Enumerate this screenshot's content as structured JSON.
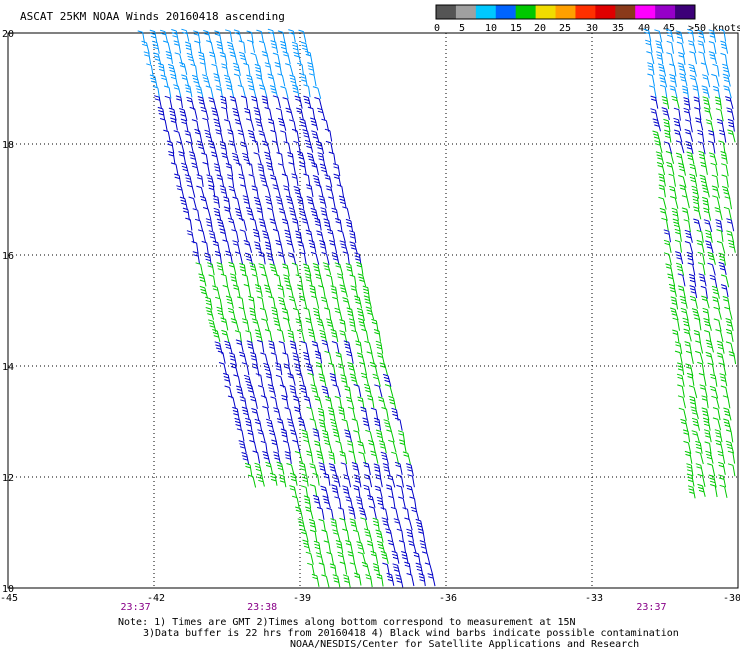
{
  "title": "ASCAT 25KM NOAA Winds 20160418 ascending",
  "map": {
    "lon_range": [
      -45,
      -30
    ],
    "lat_range": [
      10,
      20
    ],
    "lon_ticks": [
      -45,
      -42,
      -39,
      -36,
      -33,
      -30
    ],
    "lon_tick_labels": [
      "-45",
      "-42",
      "-39",
      "-36",
      "-33",
      "-30"
    ],
    "lat_ticks": [
      20,
      18,
      16,
      14,
      12,
      10
    ],
    "lat_tick_labels": [
      "20",
      "18",
      "16",
      "14",
      "12",
      "10"
    ],
    "grid_lon": [
      -42,
      -39,
      -36,
      -33
    ],
    "grid_lat": [
      18,
      16,
      14,
      12
    ],
    "grid": "dotted"
  },
  "legend": {
    "tick_labels": [
      "0",
      "5",
      "10",
      "15",
      "20",
      "25",
      "30",
      "35",
      "40",
      "45",
      ">50 knots"
    ],
    "colors": [
      "#555555",
      "#a0a0a0",
      "#00c8ff",
      "#0064ff",
      "#00c800",
      "#f0dc00",
      "#ffa000",
      "#ff3000",
      "#e00000",
      "#8a3a1a",
      "#ff00ff",
      "#9600c8",
      "#3c0078"
    ]
  },
  "times": [
    {
      "label": "23:37",
      "lon": -42.4
    },
    {
      "label": "23:38",
      "lon": -39.8
    },
    {
      "label": "23:37",
      "lon": -31.8
    }
  ],
  "swaths": [
    {
      "name": "west",
      "time_label": "23:38",
      "corners_lonlat": [
        [
          -42.2,
          20
        ],
        [
          -38.9,
          20
        ],
        [
          -36.0,
          10
        ],
        [
          -39.4,
          10
        ]
      ]
    },
    {
      "name": "east",
      "time_label": "23:37",
      "corners_lonlat": [
        [
          -31.8,
          20
        ],
        [
          -30,
          20
        ],
        [
          -30,
          11.5
        ],
        [
          -30.7,
          11.5
        ]
      ]
    }
  ],
  "wind_colors": {
    "light_blue": "#0096ff",
    "blue": "#0000c8",
    "green": "#00c800"
  },
  "notes": {
    "line1": "Note: 1) Times are GMT 2)Times along bottom correspond to measurement at 15N",
    "line2": "3)Data buffer is 22 hrs from 20160418 4) Black wind barbs indicate possible contamination",
    "line3": "NOAA/NESDIS/Center for Satellite Applications and Research"
  }
}
